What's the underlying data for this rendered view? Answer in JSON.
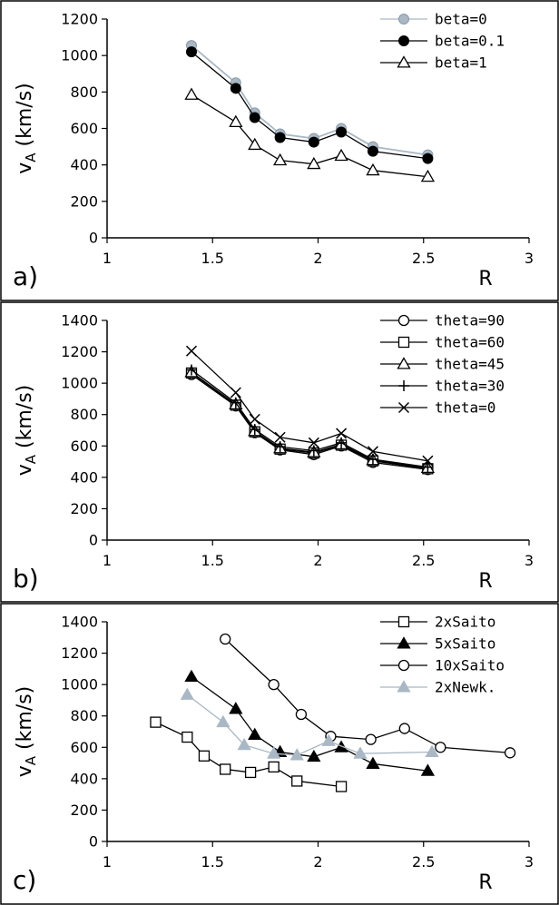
{
  "chart_data": [
    {
      "type": "line",
      "panel_label": "a)",
      "xlabel": "R",
      "ylabel_main": "v",
      "ylabel_sub": "A",
      "ylabel_unit": " (km/s)",
      "xlim": [
        1,
        3
      ],
      "ylim": [
        0,
        1200
      ],
      "xticks": [
        1,
        1.5,
        2,
        2.5,
        3
      ],
      "xtick_labels": [
        "1",
        "1.5",
        "2",
        "2.5",
        "3"
      ],
      "yticks": [
        0,
        200,
        400,
        600,
        800,
        1000,
        1200
      ],
      "ytick_labels": [
        "0",
        "200",
        "400",
        "600",
        "800",
        "1000",
        "1200"
      ],
      "legend_position": "top-right",
      "series": [
        {
          "name": "beta=0",
          "x": [
            1.4,
            1.61,
            1.7,
            1.82,
            1.98,
            2.11,
            2.26,
            2.52
          ],
          "y": [
            1055,
            850,
            685,
            570,
            545,
            600,
            500,
            455
          ],
          "color": "#a9b8c4",
          "marker": "circle-filled",
          "stroke": "#a9b8c4"
        },
        {
          "name": "beta=0.1",
          "x": [
            1.4,
            1.61,
            1.7,
            1.82,
            1.98,
            2.11,
            2.26,
            2.52
          ],
          "y": [
            1020,
            820,
            660,
            550,
            525,
            580,
            475,
            435
          ],
          "color": "#000000",
          "marker": "circle-filled",
          "stroke": "#000000"
        },
        {
          "name": "beta=1",
          "x": [
            1.4,
            1.61,
            1.7,
            1.82,
            1.98,
            2.11,
            2.26,
            2.52
          ],
          "y": [
            785,
            635,
            510,
            425,
            405,
            450,
            370,
            335
          ],
          "color": "#000000",
          "marker": "triangle-open",
          "stroke": "#000000"
        }
      ]
    },
    {
      "type": "line",
      "panel_label": "b)",
      "xlabel": "R",
      "ylabel_main": "v",
      "ylabel_sub": "A",
      "ylabel_unit": " (km/s)",
      "xlim": [
        1,
        3
      ],
      "ylim": [
        0,
        1400
      ],
      "xticks": [
        1,
        1.5,
        2,
        2.5,
        3
      ],
      "xtick_labels": [
        "1",
        "1.5",
        "2",
        "2.5",
        "3"
      ],
      "yticks": [
        0,
        200,
        400,
        600,
        800,
        1000,
        1200,
        1400
      ],
      "ytick_labels": [
        "0",
        "200",
        "400",
        "600",
        "800",
        "1000",
        "1200",
        "1400"
      ],
      "legend_position": "top-right",
      "series": [
        {
          "name": "theta=90",
          "x": [
            1.4,
            1.61,
            1.7,
            1.82,
            1.98,
            2.11,
            2.26,
            2.52
          ],
          "y": [
            1055,
            855,
            685,
            575,
            545,
            600,
            495,
            450
          ],
          "color": "#000000",
          "marker": "circle-open",
          "stroke": "#000000"
        },
        {
          "name": "theta=60",
          "x": [
            1.4,
            1.61,
            1.7,
            1.82,
            1.98,
            2.11,
            2.26,
            2.52
          ],
          "y": [
            1065,
            860,
            690,
            580,
            555,
            605,
            505,
            455
          ],
          "color": "#000000",
          "marker": "square-open",
          "stroke": "#000000"
        },
        {
          "name": "theta=45",
          "x": [
            1.4,
            1.61,
            1.7,
            1.82,
            1.98,
            2.11,
            2.26,
            2.52
          ],
          "y": [
            1070,
            865,
            695,
            585,
            560,
            610,
            510,
            460
          ],
          "color": "#000000",
          "marker": "triangle-open",
          "stroke": "#000000"
        },
        {
          "name": "theta=30",
          "x": [
            1.4,
            1.61,
            1.7,
            1.82,
            1.98,
            2.11,
            2.26,
            2.52
          ],
          "y": [
            1085,
            875,
            705,
            595,
            570,
            620,
            515,
            465
          ],
          "color": "#000000",
          "marker": "plus",
          "stroke": "#000000"
        },
        {
          "name": "theta=0",
          "x": [
            1.4,
            1.61,
            1.7,
            1.82,
            1.98,
            2.11,
            2.26,
            2.52
          ],
          "y": [
            1205,
            940,
            770,
            655,
            620,
            680,
            565,
            505
          ],
          "color": "#000000",
          "marker": "cross",
          "stroke": "#000000"
        }
      ]
    },
    {
      "type": "line",
      "panel_label": "c)",
      "xlabel": "R",
      "ylabel_main": "v",
      "ylabel_sub": "A",
      "ylabel_unit": " (km/s)",
      "xlim": [
        1,
        3
      ],
      "ylim": [
        0,
        1400
      ],
      "xticks": [
        1,
        1.5,
        2,
        2.5,
        3
      ],
      "xtick_labels": [
        "1",
        "1.5",
        "2",
        "2.5",
        "3"
      ],
      "yticks": [
        0,
        200,
        400,
        600,
        800,
        1000,
        1200,
        1400
      ],
      "ytick_labels": [
        "0",
        "200",
        "400",
        "600",
        "800",
        "1000",
        "1200",
        "1400"
      ],
      "legend_position": "top-right",
      "series": [
        {
          "name": "2xSaito",
          "x": [
            1.23,
            1.38,
            1.46,
            1.56,
            1.68,
            1.79,
            1.9,
            2.11
          ],
          "y": [
            760,
            665,
            545,
            460,
            440,
            475,
            385,
            350
          ],
          "color": "#000000",
          "marker": "square-open",
          "stroke": "#000000"
        },
        {
          "name": "5xSaito",
          "x": [
            1.4,
            1.61,
            1.7,
            1.82,
            1.98,
            2.11,
            2.26,
            2.52
          ],
          "y": [
            1050,
            845,
            680,
            570,
            540,
            600,
            495,
            450
          ],
          "color": "#000000",
          "marker": "triangle-filled",
          "stroke": "#000000"
        },
        {
          "name": "10xSaito",
          "x": [
            1.56,
            1.79,
            1.92,
            2.06,
            2.25,
            2.41,
            2.58,
            2.91
          ],
          "y": [
            1290,
            1000,
            810,
            670,
            650,
            720,
            600,
            565
          ],
          "color": "#000000",
          "marker": "circle-open",
          "stroke": "#000000"
        },
        {
          "name": "2xNewk.",
          "x": [
            1.38,
            1.55,
            1.65,
            1.79,
            1.9,
            2.05,
            2.2,
            2.54
          ],
          "y": [
            935,
            760,
            615,
            560,
            550,
            640,
            560,
            570
          ],
          "color": "#a9b8c4",
          "marker": "triangle-filled",
          "stroke": "#a9b8c4"
        }
      ]
    }
  ]
}
